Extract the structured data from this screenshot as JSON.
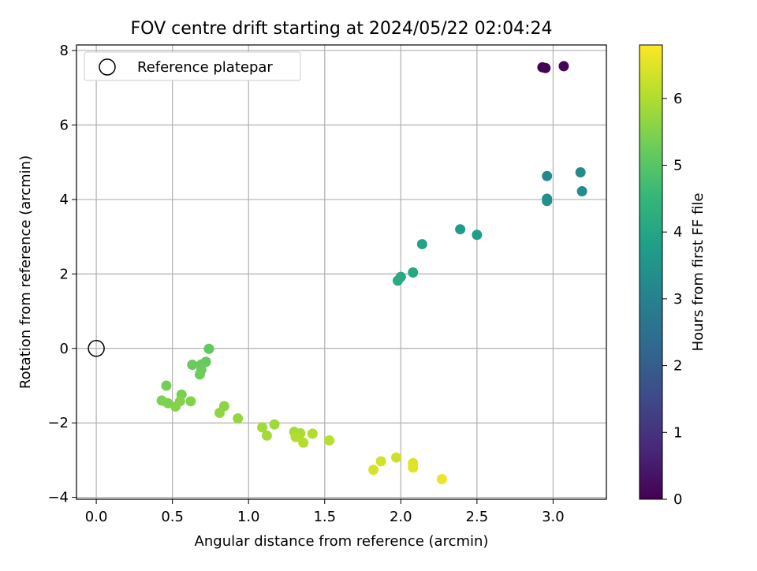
{
  "chart_data": {
    "type": "scatter",
    "title": "FOV centre drift starting at 2024/05/22 02:04:24",
    "xlabel": "Angular distance from reference (arcmin)",
    "ylabel": "Rotation from reference (arcmin)",
    "xlim": [
      -0.13,
      3.35
    ],
    "ylim": [
      -4.05,
      8.15
    ],
    "xticks": [
      0.0,
      0.5,
      1.0,
      1.5,
      2.0,
      2.5,
      3.0
    ],
    "xtick_labels": [
      "0.0",
      "0.5",
      "1.0",
      "1.5",
      "2.0",
      "2.5",
      "3.0"
    ],
    "yticks": [
      -4,
      -2,
      0,
      2,
      4,
      6,
      8
    ],
    "ytick_labels": [
      "−4",
      "−2",
      "0",
      "2",
      "4",
      "6",
      "8"
    ],
    "grid": true,
    "legend": {
      "position": "top-left",
      "entries": [
        "Reference platepar"
      ]
    },
    "reference_point": {
      "x": 0.0,
      "y": 0.0
    },
    "colorbar": {
      "label": "Hours from first FF file",
      "colormap": "viridis",
      "range": [
        0,
        6.8
      ],
      "ticks": [
        0,
        1,
        2,
        3,
        4,
        5,
        6
      ],
      "tick_labels": [
        "0",
        "1",
        "2",
        "3",
        "4",
        "5",
        "6"
      ]
    },
    "points": [
      {
        "x": 2.93,
        "y": 7.55,
        "c": 0.0
      },
      {
        "x": 2.95,
        "y": 7.53,
        "c": 0.05
      },
      {
        "x": 3.07,
        "y": 7.58,
        "c": 0.1
      },
      {
        "x": 2.96,
        "y": 4.63,
        "c": 3.2
      },
      {
        "x": 3.18,
        "y": 4.73,
        "c": 3.25
      },
      {
        "x": 3.19,
        "y": 4.22,
        "c": 3.3
      },
      {
        "x": 2.96,
        "y": 4.02,
        "c": 3.35
      },
      {
        "x": 2.96,
        "y": 3.96,
        "c": 3.4
      },
      {
        "x": 2.39,
        "y": 3.2,
        "c": 3.7
      },
      {
        "x": 2.5,
        "y": 3.05,
        "c": 3.75
      },
      {
        "x": 2.14,
        "y": 2.8,
        "c": 3.9
      },
      {
        "x": 2.08,
        "y": 2.04,
        "c": 4.05
      },
      {
        "x": 2.0,
        "y": 1.92,
        "c": 4.1
      },
      {
        "x": 1.98,
        "y": 1.82,
        "c": 4.15
      },
      {
        "x": 0.74,
        "y": -0.01,
        "c": 5.1
      },
      {
        "x": 0.72,
        "y": -0.36,
        "c": 5.15
      },
      {
        "x": 0.69,
        "y": -0.43,
        "c": 5.2
      },
      {
        "x": 0.63,
        "y": -0.44,
        "c": 5.2
      },
      {
        "x": 0.69,
        "y": -0.57,
        "c": 5.25
      },
      {
        "x": 0.68,
        "y": -0.7,
        "c": 5.3
      },
      {
        "x": 0.46,
        "y": -1.0,
        "c": 5.35
      },
      {
        "x": 0.56,
        "y": -1.24,
        "c": 5.4
      },
      {
        "x": 0.43,
        "y": -1.4,
        "c": 5.45
      },
      {
        "x": 0.47,
        "y": -1.47,
        "c": 5.45
      },
      {
        "x": 0.55,
        "y": -1.42,
        "c": 5.5
      },
      {
        "x": 0.62,
        "y": -1.42,
        "c": 5.5
      },
      {
        "x": 0.52,
        "y": -1.56,
        "c": 5.55
      },
      {
        "x": 0.84,
        "y": -1.55,
        "c": 5.6
      },
      {
        "x": 0.81,
        "y": -1.73,
        "c": 5.65
      },
      {
        "x": 0.93,
        "y": -1.88,
        "c": 5.7
      },
      {
        "x": 1.17,
        "y": -2.04,
        "c": 5.8
      },
      {
        "x": 1.09,
        "y": -2.12,
        "c": 5.85
      },
      {
        "x": 1.12,
        "y": -2.34,
        "c": 5.85
      },
      {
        "x": 1.3,
        "y": -2.24,
        "c": 5.9
      },
      {
        "x": 1.34,
        "y": -2.28,
        "c": 5.95
      },
      {
        "x": 1.31,
        "y": -2.38,
        "c": 6.0
      },
      {
        "x": 1.42,
        "y": -2.29,
        "c": 6.0
      },
      {
        "x": 1.36,
        "y": -2.53,
        "c": 6.05
      },
      {
        "x": 1.53,
        "y": -2.47,
        "c": 6.1
      },
      {
        "x": 1.97,
        "y": -2.93,
        "c": 6.3
      },
      {
        "x": 1.87,
        "y": -3.03,
        "c": 6.35
      },
      {
        "x": 1.82,
        "y": -3.26,
        "c": 6.4
      },
      {
        "x": 2.08,
        "y": -3.08,
        "c": 6.45
      },
      {
        "x": 2.08,
        "y": -3.2,
        "c": 6.5
      },
      {
        "x": 2.27,
        "y": -3.51,
        "c": 6.6
      }
    ]
  }
}
